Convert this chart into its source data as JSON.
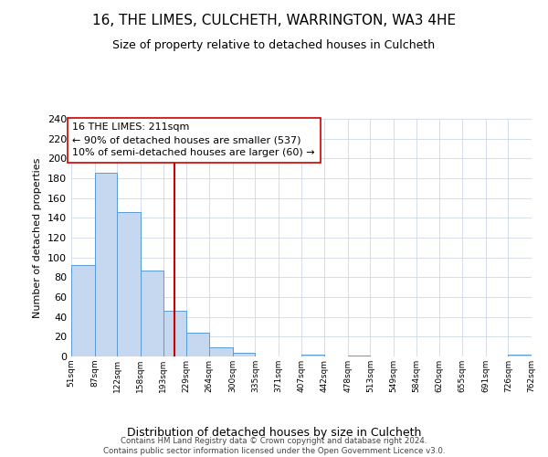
{
  "title": "16, THE LIMES, CULCHETH, WARRINGTON, WA3 4HE",
  "subtitle": "Size of property relative to detached houses in Culcheth",
  "xlabel": "Distribution of detached houses by size in Culcheth",
  "ylabel": "Number of detached properties",
  "bin_edges": [
    51,
    87,
    122,
    158,
    193,
    229,
    264,
    300,
    335,
    371,
    407,
    442,
    478,
    513,
    549,
    584,
    620,
    655,
    691,
    726,
    762
  ],
  "counts": [
    92,
    186,
    146,
    87,
    46,
    24,
    9,
    4,
    0,
    0,
    2,
    0,
    1,
    0,
    0,
    0,
    0,
    0,
    0,
    2
  ],
  "bar_color": "#c5d8f0",
  "bar_edge_color": "#5b9bd5",
  "property_size": 211,
  "property_line_color": "#cc0000",
  "annotation_line1": "16 THE LIMES: 211sqm",
  "annotation_line2": "← 90% of detached houses are smaller (537)",
  "annotation_line3": "10% of semi-detached houses are larger (60) →",
  "annotation_box_color": "#ffffff",
  "annotation_box_edge_color": "#cc0000",
  "ylim": [
    0,
    240
  ],
  "yticks": [
    0,
    20,
    40,
    60,
    80,
    100,
    120,
    140,
    160,
    180,
    200,
    220,
    240
  ],
  "tick_labels": [
    "51sqm",
    "87sqm",
    "122sqm",
    "158sqm",
    "193sqm",
    "229sqm",
    "264sqm",
    "300sqm",
    "335sqm",
    "371sqm",
    "407sqm",
    "442sqm",
    "478sqm",
    "513sqm",
    "549sqm",
    "584sqm",
    "620sqm",
    "655sqm",
    "691sqm",
    "726sqm",
    "762sqm"
  ],
  "footer_text": "Contains HM Land Registry data © Crown copyright and database right 2024.\nContains public sector information licensed under the Open Government Licence v3.0.",
  "grid_color": "#d0d8e8",
  "background_color": "#ffffff",
  "title_fontsize": 11,
  "subtitle_fontsize": 9,
  "annotation_fontsize": 8
}
